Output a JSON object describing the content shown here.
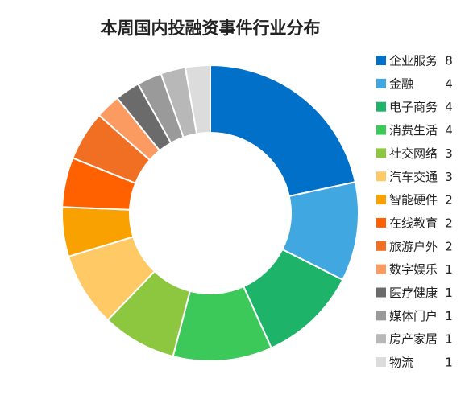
{
  "chart_data": {
    "type": "donut",
    "title": "本周国内投融资事件行业分布",
    "categories": [
      "企业服务",
      "金融",
      "电子商务",
      "消费生活",
      "社交网络",
      "汽车交通",
      "智能硬件",
      "在线教育",
      "旅游户外",
      "数字娱乐",
      "医疗健康",
      "媒体门户",
      "房产家居",
      "物流"
    ],
    "values": [
      8,
      4,
      4,
      4,
      3,
      3,
      2,
      2,
      2,
      1,
      1,
      1,
      1,
      1
    ],
    "colors": [
      "#0070c8",
      "#41a7e0",
      "#1db46a",
      "#3cc95a",
      "#8dc63f",
      "#ffc966",
      "#f9a100",
      "#ff6000",
      "#f06f22",
      "#fb9b62",
      "#6b6b6b",
      "#9a9a9a",
      "#b8b8b8",
      "#dcdcdc"
    ],
    "legend": "right"
  }
}
